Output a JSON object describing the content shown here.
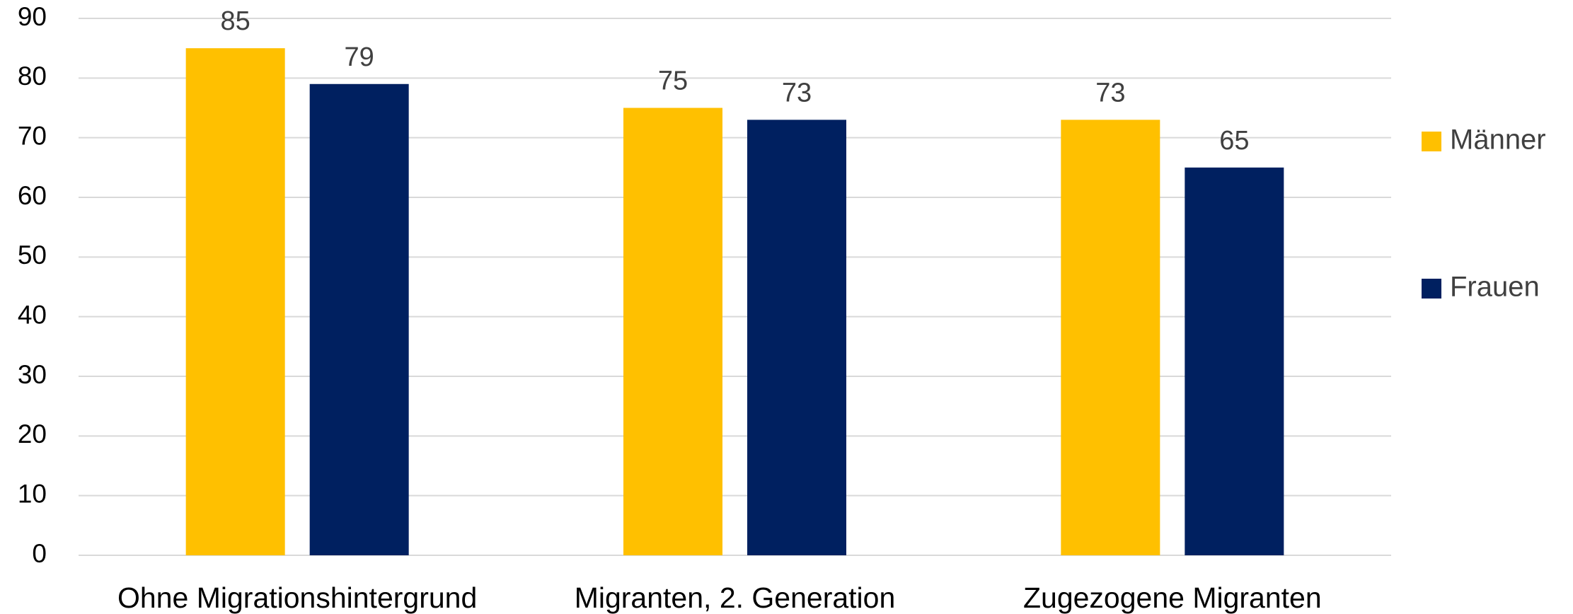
{
  "chart_data": {
    "type": "bar",
    "categories": [
      "Ohne Migrationshintergrund",
      "Migranten, 2. Generation",
      "Zugezogene Migranten"
    ],
    "series": [
      {
        "name": "Männer",
        "color": "#ffc000",
        "values": [
          85,
          75,
          73
        ]
      },
      {
        "name": "Frauen",
        "color": "#002060",
        "values": [
          79,
          73,
          65
        ]
      }
    ],
    "ylim": [
      0,
      90
    ],
    "yticks": [
      0,
      10,
      20,
      30,
      40,
      50,
      60,
      70,
      80,
      90
    ],
    "grid": true,
    "legend": "right"
  }
}
